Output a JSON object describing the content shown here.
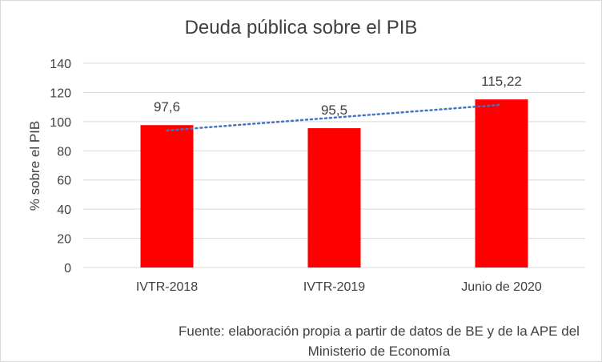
{
  "chart_data": {
    "type": "bar",
    "title": "Deuda pública sobre el PIB",
    "ylabel": "% sobre el PIB",
    "xlabel": "",
    "categories": [
      "IVTR-2018",
      "IVTR-2019",
      "Junio de 2020"
    ],
    "values": [
      97.6,
      95.5,
      115.22
    ],
    "data_labels": [
      "97,6",
      "95,5",
      "115,22"
    ],
    "ylim": [
      0,
      140
    ],
    "yticks": [
      0,
      20,
      40,
      60,
      80,
      100,
      120,
      140
    ],
    "ytick_labels": [
      "0",
      "20",
      "40",
      "60",
      "80",
      "100",
      "120",
      "140"
    ],
    "grid": true,
    "trendline": {
      "type": "linear",
      "style": "dotted"
    },
    "colors": {
      "bar": "#ff0000",
      "trendline": "#4472c4",
      "grid": "#d9d9d9",
      "text": "#404040"
    }
  },
  "source_note": "Fuente: elaboración propia a partir de datos de BE y de la APE del Ministerio de Economía"
}
